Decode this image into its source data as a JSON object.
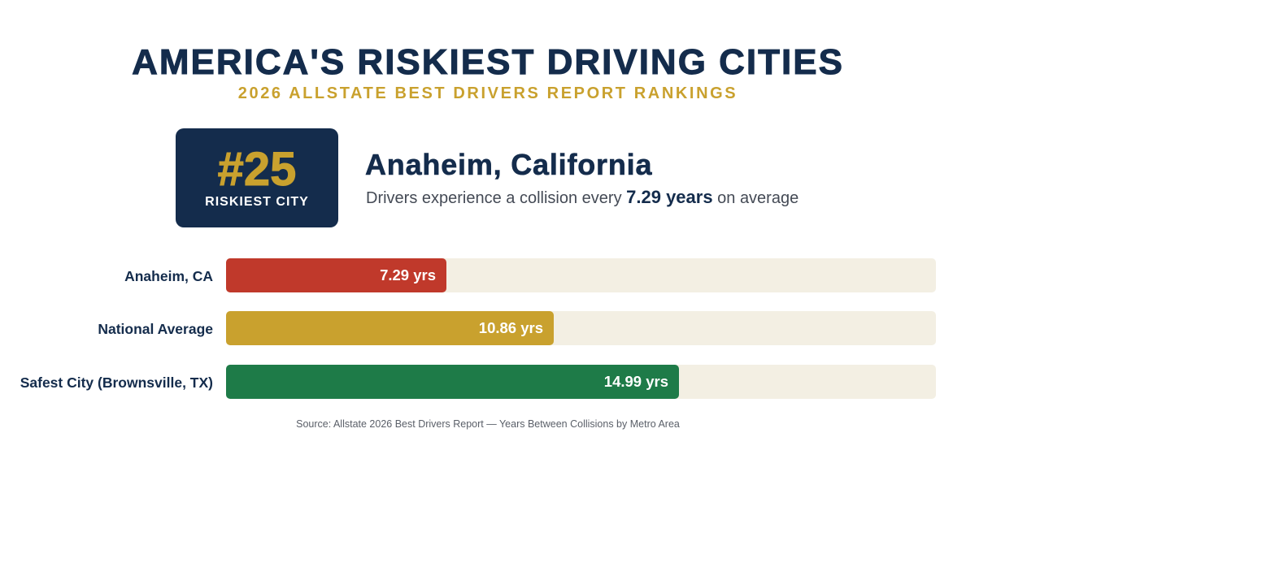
{
  "header": {
    "title": "AMERICA'S RISKIEST DRIVING CITIES",
    "subtitle": "2026 ALLSTATE BEST DRIVERS REPORT RANKINGS"
  },
  "rank": {
    "number": "#25",
    "label": "RISKIEST CITY"
  },
  "city": {
    "name": "Anaheim, California",
    "desc_before": "Drivers experience a collision every ",
    "desc_highlight": "7.29 years",
    "desc_after": " on average"
  },
  "chart_data": {
    "type": "bar",
    "orientation": "horizontal",
    "categories": [
      "Anaheim, CA",
      "National Average",
      "Safest City (Brownsville, TX)"
    ],
    "values": [
      7.29,
      10.86,
      14.99
    ],
    "value_labels": [
      "7.29 yrs",
      "10.86 yrs",
      "14.99 yrs"
    ],
    "colors": [
      "#c0392b",
      "#c9a12e",
      "#1e7b48"
    ],
    "xlim": [
      0,
      23.5
    ],
    "grid": false,
    "track_color": "#f3efe3"
  },
  "footer": {
    "source": "Source: Allstate 2026 Best Drivers Report — Years Between Collisions by Metro Area"
  },
  "colors": {
    "navy": "#142c4c",
    "gold": "#c9a12e"
  }
}
